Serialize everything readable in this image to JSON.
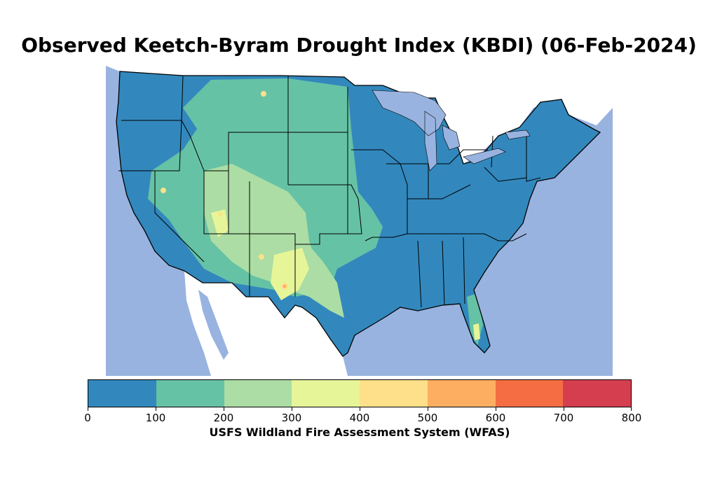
{
  "title": "Observed Keetch-Byram Drought Index (KBDI) (06-Feb-2024)",
  "map": {
    "region": "Contiguous United States",
    "ocean_color": "#99b3e0",
    "land_outside_color": "#ffffff",
    "border_color": "#000000"
  },
  "colorbar": {
    "label": "USFS Wildland Fire Assessment System (WFAS)",
    "ticks": [
      "0",
      "100",
      "200",
      "300",
      "400",
      "500",
      "600",
      "700",
      "800"
    ],
    "bins": [
      {
        "range": [
          0,
          100
        ],
        "color": "#3288bd"
      },
      {
        "range": [
          100,
          200
        ],
        "color": "#66c2a5"
      },
      {
        "range": [
          200,
          300
        ],
        "color": "#abdda4"
      },
      {
        "range": [
          300,
          400
        ],
        "color": "#e6f598"
      },
      {
        "range": [
          400,
          500
        ],
        "color": "#fee08b"
      },
      {
        "range": [
          500,
          600
        ],
        "color": "#fdae61"
      },
      {
        "range": [
          600,
          700
        ],
        "color": "#f46d43"
      },
      {
        "range": [
          700,
          800
        ],
        "color": "#d53e4f"
      }
    ]
  }
}
